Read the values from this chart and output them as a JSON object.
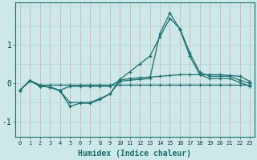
{
  "xlabel": "Humidex (Indice chaleur)",
  "xlim": [
    -0.5,
    23.5
  ],
  "ylim": [
    -1.4,
    2.1
  ],
  "yticks": [
    -1,
    0,
    1
  ],
  "xticks": [
    0,
    1,
    2,
    3,
    4,
    5,
    6,
    7,
    8,
    9,
    10,
    11,
    12,
    13,
    14,
    15,
    16,
    17,
    18,
    19,
    20,
    21,
    22,
    23
  ],
  "bg_color": "#cce8e8",
  "line_color": "#1a7070",
  "grid_color_v": "#ddb0b0",
  "grid_color_h": "#b0d8d8",
  "series": [
    {
      "x": [
        0,
        1,
        2,
        3,
        4,
        5,
        6,
        7,
        8,
        9,
        10,
        11,
        12,
        13,
        14,
        15,
        16,
        17,
        18,
        19,
        20,
        21,
        22,
        23
      ],
      "y": [
        -0.18,
        0.07,
        -0.05,
        -0.05,
        -0.05,
        -0.05,
        -0.05,
        -0.05,
        -0.05,
        -0.05,
        -0.05,
        -0.05,
        -0.05,
        -0.05,
        -0.05,
        -0.05,
        -0.05,
        -0.05,
        -0.05,
        -0.05,
        -0.05,
        -0.05,
        -0.05,
        -0.05
      ]
    },
    {
      "x": [
        0,
        1,
        2,
        3,
        4,
        5,
        6,
        7,
        8,
        9,
        10,
        11,
        12,
        13,
        14,
        15,
        16,
        17,
        18,
        19,
        20,
        21,
        22,
        23
      ],
      "y": [
        -0.18,
        0.07,
        -0.08,
        -0.1,
        -0.18,
        -0.08,
        -0.08,
        -0.08,
        -0.08,
        -0.08,
        0.08,
        0.12,
        0.14,
        0.16,
        0.18,
        0.2,
        0.22,
        0.22,
        0.22,
        0.22,
        0.22,
        0.2,
        0.18,
        0.05
      ]
    },
    {
      "x": [
        0,
        1,
        2,
        3,
        4,
        5,
        6,
        7,
        8,
        9,
        10,
        11,
        12,
        13,
        14,
        15,
        16,
        17,
        18,
        19,
        20,
        21,
        22,
        23
      ],
      "y": [
        -0.18,
        0.07,
        -0.08,
        -0.1,
        -0.2,
        -0.5,
        -0.5,
        -0.5,
        -0.4,
        -0.28,
        0.1,
        0.3,
        0.5,
        0.7,
        1.2,
        1.68,
        1.42,
        0.78,
        0.28,
        0.18,
        0.18,
        0.18,
        0.08,
        0.0
      ]
    },
    {
      "x": [
        0,
        1,
        2,
        3,
        4,
        5,
        6,
        7,
        8,
        9,
        10,
        11,
        12,
        13,
        14,
        15,
        16,
        17,
        18,
        19,
        20,
        21,
        22,
        23
      ],
      "y": [
        -0.18,
        0.07,
        -0.08,
        -0.1,
        -0.2,
        -0.6,
        -0.52,
        -0.52,
        -0.42,
        -0.28,
        0.05,
        0.08,
        0.1,
        0.12,
        1.28,
        1.82,
        1.4,
        0.7,
        0.22,
        0.12,
        0.12,
        0.12,
        0.02,
        -0.08
      ]
    }
  ]
}
